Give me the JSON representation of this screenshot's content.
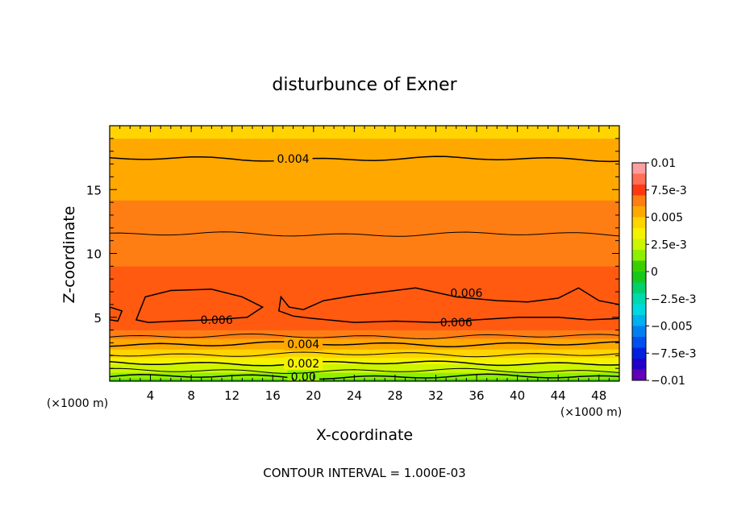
{
  "chart_data": {
    "type": "heatmap",
    "title": "disturbunce of Exner",
    "xlabel": "X-coordinate",
    "ylabel": "Z-coordinate",
    "x_unit": "(×1000 m)",
    "y_unit": "(×1000 m)",
    "xlim": [
      0,
      50
    ],
    "ylim": [
      0,
      20
    ],
    "x_ticks": [
      4,
      8,
      12,
      16,
      20,
      24,
      28,
      32,
      36,
      40,
      44,
      48
    ],
    "x_tick_labels": [
      "4",
      "8",
      "12",
      "16",
      "20",
      "24",
      "28",
      "32",
      "36",
      "40",
      "44",
      "48"
    ],
    "y_ticks": [
      5,
      10,
      15
    ],
    "y_tick_labels": [
      "5",
      "10",
      "15"
    ],
    "contour_interval_text": "CONTOUR INTERVAL = 1.000E-03",
    "colorbar": {
      "range": [
        -0.01,
        0.01
      ],
      "labels": [
        "0.01",
        "7.5e-3",
        "0.005",
        "2.5e-3",
        "0",
        "−2.5e-3",
        "−0.005",
        "−7.5e-3",
        "−0.01"
      ],
      "colors": [
        "#ff9e9e",
        "#ff6e56",
        "#ff3a10",
        "#ff7e14",
        "#ffa800",
        "#ffd400",
        "#f5f200",
        "#ccf500",
        "#8ef000",
        "#3ad000",
        "#18c818",
        "#00d06e",
        "#00d8b0",
        "#00d8e0",
        "#00b0f0",
        "#0080f0",
        "#0050f0",
        "#0020e0",
        "#2000c8",
        "#6000b8"
      ]
    },
    "band_colors": [
      "#3ad000",
      "#8ef000",
      "#ccf500",
      "#f5f200",
      "#ffd400",
      "#ffa800",
      "#ff7e14",
      "#ff5a10"
    ],
    "profile": [
      {
        "z": 0.0,
        "v": 0.0006
      },
      {
        "z": 0.5,
        "v": 0.0012
      },
      {
        "z": 1.0,
        "v": 0.0019
      },
      {
        "z": 1.5,
        "v": 0.0026
      },
      {
        "z": 2.0,
        "v": 0.0033
      },
      {
        "z": 2.6,
        "v": 0.0039
      },
      {
        "z": 3.2,
        "v": 0.0044
      },
      {
        "z": 3.8,
        "v": 0.005
      },
      {
        "z": 4.6,
        "v": 0.0058
      },
      {
        "z": 5.5,
        "v": 0.0061
      },
      {
        "z": 6.5,
        "v": 0.0058
      },
      {
        "z": 8.0,
        "v": 0.0055
      },
      {
        "z": 9.5,
        "v": 0.0051
      },
      {
        "z": 11.5,
        "v": 0.005
      },
      {
        "z": 13.5,
        "v": 0.0046
      },
      {
        "z": 15.5,
        "v": 0.0043
      },
      {
        "z": 17.4,
        "v": 0.004
      },
      {
        "z": 20.0,
        "v": 0.0036
      }
    ],
    "contours": [
      {
        "level": 0.0,
        "label": "0.00",
        "z": 0.35,
        "label_x": 19.0
      },
      {
        "level": 0.001,
        "label": "",
        "z": 0.8
      },
      {
        "level": 0.002,
        "label": "0.002",
        "z": 1.4,
        "label_x": 19.0
      },
      {
        "level": 0.003,
        "label": "",
        "z": 2.1
      },
      {
        "level": 0.004,
        "label": "0.004",
        "z": 2.9,
        "label_x": 19.0
      },
      {
        "level": 0.005,
        "label": "",
        "z": 3.5
      },
      {
        "level": 0.005,
        "label": "",
        "z": 11.5
      },
      {
        "level": 0.004,
        "label": "0.004",
        "z": 17.4,
        "label_x": 18.0
      }
    ],
    "regions_0006": [
      {
        "label": "0.006",
        "label_pos": [
          10.5,
          4.8
        ],
        "outline": [
          [
            2.6,
            4.8
          ],
          [
            3.5,
            6.6
          ],
          [
            6.0,
            7.1
          ],
          [
            10.0,
            7.2
          ],
          [
            13.0,
            6.6
          ],
          [
            15.0,
            5.8
          ],
          [
            13.5,
            5.0
          ],
          [
            10.0,
            4.8
          ],
          [
            6.5,
            4.7
          ],
          [
            3.8,
            4.6
          ]
        ]
      },
      {
        "label": "0.006",
        "label_pos": [
          34.0,
          4.6
        ],
        "second_label": "0.006",
        "second_label_pos": [
          35.0,
          6.9
        ],
        "outline": [
          [
            16.8,
            6.6
          ],
          [
            17.6,
            5.8
          ],
          [
            19.0,
            5.6
          ],
          [
            21.0,
            6.3
          ],
          [
            24.0,
            6.7
          ],
          [
            28.0,
            7.1
          ],
          [
            30.0,
            7.3
          ],
          [
            34.0,
            6.6
          ],
          [
            38.0,
            6.3
          ],
          [
            41.0,
            6.2
          ],
          [
            44.0,
            6.5
          ],
          [
            46.0,
            7.3
          ],
          [
            48.0,
            6.3
          ],
          [
            50.0,
            6.0
          ],
          [
            50.0,
            4.9
          ],
          [
            47.0,
            4.8
          ],
          [
            44.0,
            5.0
          ],
          [
            40.0,
            5.0
          ],
          [
            36.0,
            4.8
          ],
          [
            32.0,
            4.6
          ],
          [
            28.0,
            4.7
          ],
          [
            24.0,
            4.6
          ],
          [
            20.0,
            4.9
          ],
          [
            18.0,
            5.1
          ],
          [
            16.6,
            5.5
          ]
        ]
      },
      {
        "label": "",
        "outline": [
          [
            0.0,
            5.8
          ],
          [
            1.2,
            5.5
          ],
          [
            0.8,
            4.7
          ],
          [
            0.0,
            4.8
          ]
        ]
      }
    ]
  }
}
